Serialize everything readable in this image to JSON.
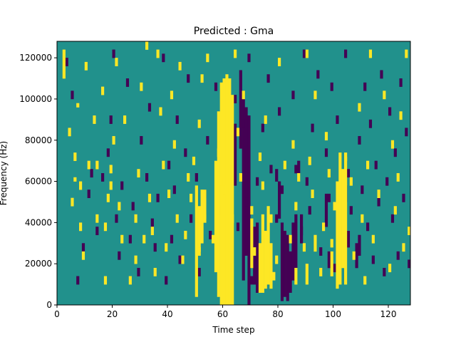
{
  "chart_data": {
    "type": "heatmap",
    "title": "Predicted : Gma",
    "xlabel": "Time step",
    "ylabel": "Frequency (Hz)",
    "xlim": [
      0,
      128
    ],
    "ylim": [
      0,
      128000
    ],
    "x_ticks": [
      0,
      20,
      40,
      60,
      80,
      100,
      120
    ],
    "x_tick_labels": [
      "0",
      "20",
      "40",
      "60",
      "80",
      "100",
      "120"
    ],
    "y_ticks": [
      0,
      20000,
      40000,
      60000,
      80000,
      100000,
      120000
    ],
    "y_tick_labels": [
      "0",
      "20000",
      "40000",
      "60000",
      "80000",
      "100000",
      "120000"
    ],
    "grid_size": {
      "time_steps": 128,
      "frequency_bins": 128
    },
    "frequency_bin_hz": 1000,
    "palette": {
      "background": "#21918c",
      "low": "#440154",
      "high": "#fde725"
    },
    "cell_values": {
      "background": 0,
      "low": -1,
      "high": 1
    },
    "high_cells": [
      [
        2,
        110,
        124
      ],
      [
        4,
        82,
        86
      ],
      [
        6,
        70,
        74
      ],
      [
        6,
        60,
        62
      ],
      [
        7,
        96,
        98
      ],
      [
        8,
        56,
        60
      ],
      [
        8,
        36,
        40
      ],
      [
        5,
        48,
        52
      ],
      [
        9,
        22,
        26
      ],
      [
        10,
        114,
        118
      ],
      [
        11,
        66,
        70
      ],
      [
        13,
        88,
        92
      ],
      [
        14,
        66,
        70
      ],
      [
        14,
        40,
        44
      ],
      [
        16,
        102,
        106
      ],
      [
        17,
        36,
        40
      ],
      [
        17,
        10,
        14
      ],
      [
        18,
        50,
        54
      ],
      [
        19,
        64,
        68
      ],
      [
        19,
        56,
        60
      ],
      [
        20,
        78,
        82
      ],
      [
        21,
        116,
        120
      ],
      [
        22,
        46,
        50
      ],
      [
        23,
        30,
        34
      ],
      [
        24,
        88,
        92
      ],
      [
        26,
        10,
        14
      ],
      [
        28,
        40,
        44
      ],
      [
        28,
        20,
        24
      ],
      [
        29,
        62,
        66
      ],
      [
        30,
        104,
        108
      ],
      [
        31,
        30,
        34
      ],
      [
        32,
        124,
        128
      ],
      [
        33,
        50,
        54
      ],
      [
        34,
        34,
        38
      ],
      [
        35,
        14,
        18
      ],
      [
        36,
        120,
        124
      ],
      [
        37,
        92,
        96
      ],
      [
        38,
        66,
        70
      ],
      [
        39,
        26,
        30
      ],
      [
        40,
        52,
        56
      ],
      [
        41,
        100,
        104
      ],
      [
        42,
        76,
        80
      ],
      [
        43,
        40,
        44
      ],
      [
        44,
        114,
        118
      ],
      [
        45,
        20,
        24
      ],
      [
        46,
        32,
        36
      ],
      [
        47,
        60,
        64
      ],
      [
        48,
        50,
        54
      ],
      [
        49,
        68,
        72
      ],
      [
        51,
        24,
        28
      ],
      [
        51,
        86,
        90
      ],
      [
        52,
        108,
        112
      ],
      [
        53,
        40,
        44
      ],
      [
        54,
        118,
        122
      ],
      [
        56,
        30,
        34
      ],
      [
        58,
        72,
        76
      ],
      [
        59,
        58,
        62
      ],
      [
        60,
        54,
        58
      ],
      [
        62,
        26,
        30
      ],
      [
        63,
        40,
        44
      ],
      [
        64,
        120,
        124
      ],
      [
        65,
        82,
        86
      ],
      [
        66,
        60,
        64
      ],
      [
        67,
        100,
        104
      ],
      [
        70,
        44,
        48
      ],
      [
        71,
        24,
        28
      ],
      [
        73,
        70,
        74
      ],
      [
        74,
        56,
        60
      ],
      [
        75,
        88,
        92
      ],
      [
        77,
        40,
        44
      ],
      [
        78,
        12,
        16
      ],
      [
        79,
        20,
        24
      ],
      [
        80,
        116,
        120
      ],
      [
        82,
        66,
        70
      ],
      [
        84,
        30,
        34
      ],
      [
        85,
        76,
        80
      ],
      [
        86,
        46,
        50
      ],
      [
        87,
        60,
        64
      ],
      [
        89,
        26,
        30
      ],
      [
        90,
        120,
        124
      ],
      [
        91,
        68,
        72
      ],
      [
        92,
        52,
        56
      ],
      [
        93,
        100,
        104
      ],
      [
        95,
        14,
        18
      ],
      [
        96,
        36,
        40
      ],
      [
        97,
        80,
        84
      ],
      [
        98,
        62,
        66
      ],
      [
        99,
        28,
        32
      ],
      [
        100,
        46,
        50
      ],
      [
        104,
        70,
        74
      ],
      [
        106,
        58,
        62
      ],
      [
        107,
        22,
        26
      ],
      [
        109,
        94,
        98
      ],
      [
        110,
        40,
        44
      ],
      [
        111,
        10,
        14
      ],
      [
        112,
        66,
        70
      ],
      [
        113,
        120,
        124
      ],
      [
        114,
        30,
        34
      ],
      [
        116,
        52,
        56
      ],
      [
        118,
        100,
        104
      ],
      [
        120,
        16,
        20
      ],
      [
        121,
        76,
        80
      ],
      [
        122,
        44,
        48
      ],
      [
        123,
        60,
        64
      ],
      [
        124,
        90,
        94
      ],
      [
        125,
        26,
        30
      ],
      [
        126,
        120,
        124
      ],
      [
        127,
        34,
        38
      ]
    ],
    "low_cells": [
      [
        3,
        116,
        120
      ],
      [
        5,
        100,
        104
      ],
      [
        7,
        10,
        14
      ],
      [
        9,
        26,
        30
      ],
      [
        11,
        52,
        56
      ],
      [
        12,
        62,
        66
      ],
      [
        14,
        34,
        38
      ],
      [
        16,
        60,
        64
      ],
      [
        18,
        72,
        76
      ],
      [
        19,
        88,
        92
      ],
      [
        20,
        120,
        124
      ],
      [
        21,
        40,
        44
      ],
      [
        22,
        22,
        26
      ],
      [
        23,
        56,
        60
      ],
      [
        25,
        106,
        110
      ],
      [
        26,
        30,
        34
      ],
      [
        27,
        46,
        50
      ],
      [
        29,
        14,
        18
      ],
      [
        30,
        78,
        82
      ],
      [
        32,
        60,
        64
      ],
      [
        33,
        94,
        98
      ],
      [
        34,
        38,
        42
      ],
      [
        35,
        26,
        30
      ],
      [
        36,
        50,
        54
      ],
      [
        38,
        118,
        122
      ],
      [
        39,
        10,
        14
      ],
      [
        40,
        66,
        70
      ],
      [
        41,
        30,
        34
      ],
      [
        42,
        54,
        58
      ],
      [
        43,
        88,
        92
      ],
      [
        44,
        20,
        24
      ],
      [
        46,
        72,
        76
      ],
      [
        47,
        108,
        112
      ],
      [
        48,
        40,
        44
      ],
      [
        50,
        60,
        64
      ],
      [
        51,
        14,
        18
      ],
      [
        53,
        52,
        56
      ],
      [
        54,
        78,
        82
      ],
      [
        55,
        32,
        36
      ],
      [
        57,
        104,
        108
      ],
      [
        58,
        44,
        48
      ],
      [
        62,
        16,
        20
      ],
      [
        63,
        64,
        68
      ],
      [
        64,
        98,
        102
      ],
      [
        65,
        36,
        40
      ],
      [
        66,
        110,
        114
      ],
      [
        67,
        86,
        90
      ],
      [
        68,
        48,
        52
      ],
      [
        69,
        118,
        122
      ],
      [
        70,
        10,
        14
      ],
      [
        72,
        58,
        62
      ],
      [
        74,
        84,
        88
      ],
      [
        75,
        30,
        34
      ],
      [
        76,
        108,
        112
      ],
      [
        77,
        64,
        68
      ],
      [
        79,
        40,
        44
      ],
      [
        80,
        92,
        96
      ],
      [
        81,
        54,
        58
      ],
      [
        85,
        100,
        104
      ],
      [
        86,
        64,
        68
      ],
      [
        88,
        34,
        38
      ],
      [
        89,
        120,
        124
      ],
      [
        90,
        58,
        62
      ],
      [
        91,
        44,
        48
      ],
      [
        92,
        84,
        88
      ],
      [
        94,
        110,
        114
      ],
      [
        95,
        24,
        28
      ],
      [
        97,
        72,
        76
      ],
      [
        98,
        50,
        54
      ],
      [
        99,
        104,
        108
      ],
      [
        100,
        16,
        20
      ],
      [
        101,
        88,
        92
      ],
      [
        103,
        34,
        38
      ],
      [
        104,
        120,
        124
      ],
      [
        105,
        62,
        66
      ],
      [
        106,
        44,
        48
      ],
      [
        108,
        26,
        30
      ],
      [
        109,
        78,
        82
      ],
      [
        110,
        54,
        58
      ],
      [
        111,
        104,
        108
      ],
      [
        112,
        36,
        40
      ],
      [
        113,
        86,
        90
      ],
      [
        114,
        20,
        24
      ],
      [
        115,
        66,
        70
      ],
      [
        116,
        48,
        52
      ],
      [
        117,
        110,
        114
      ],
      [
        118,
        14,
        18
      ],
      [
        119,
        58,
        62
      ],
      [
        120,
        92,
        96
      ],
      [
        121,
        40,
        44
      ],
      [
        122,
        72,
        76
      ],
      [
        123,
        22,
        26
      ],
      [
        124,
        106,
        110
      ],
      [
        125,
        50,
        54
      ],
      [
        126,
        82,
        86
      ],
      [
        127,
        18,
        22
      ]
    ],
    "high_bands": [
      [
        59,
        0,
        108
      ],
      [
        60,
        0,
        110
      ],
      [
        61,
        0,
        112
      ],
      [
        62,
        0,
        110
      ],
      [
        63,
        0,
        102
      ],
      [
        58,
        4,
        94
      ],
      [
        57,
        16,
        70
      ],
      [
        50,
        4,
        58
      ],
      [
        51,
        26,
        48
      ],
      [
        52,
        30,
        56
      ],
      [
        53,
        42,
        56
      ],
      [
        99,
        14,
        26
      ],
      [
        101,
        8,
        60
      ],
      [
        102,
        10,
        74
      ],
      [
        103,
        18,
        66
      ],
      [
        104,
        10,
        72
      ],
      [
        73,
        6,
        30
      ],
      [
        74,
        6,
        44
      ],
      [
        75,
        8,
        36
      ],
      [
        76,
        10,
        48
      ],
      [
        77,
        8,
        30
      ],
      [
        70,
        18,
        42
      ],
      [
        86,
        10,
        18
      ],
      [
        90,
        10,
        20
      ],
      [
        93,
        26,
        34
      ]
    ],
    "low_bands": [
      [
        67,
        12,
        100
      ],
      [
        68,
        24,
        96
      ],
      [
        69,
        0,
        92
      ],
      [
        66,
        76,
        110
      ],
      [
        64,
        58,
        88
      ],
      [
        71,
        10,
        38
      ],
      [
        72,
        6,
        40
      ],
      [
        81,
        2,
        40
      ],
      [
        82,
        4,
        36
      ],
      [
        83,
        2,
        34
      ],
      [
        84,
        6,
        26
      ],
      [
        85,
        12,
        40
      ],
      [
        86,
        18,
        44
      ],
      [
        88,
        30,
        44
      ],
      [
        80,
        42,
        60
      ],
      [
        79,
        60,
        66
      ],
      [
        87,
        64,
        70
      ],
      [
        97,
        38,
        54
      ],
      [
        98,
        18,
        26
      ],
      [
        104,
        50,
        58
      ],
      [
        105,
        28,
        36
      ],
      [
        108,
        18,
        28
      ],
      [
        109,
        24,
        34
      ]
    ]
  }
}
